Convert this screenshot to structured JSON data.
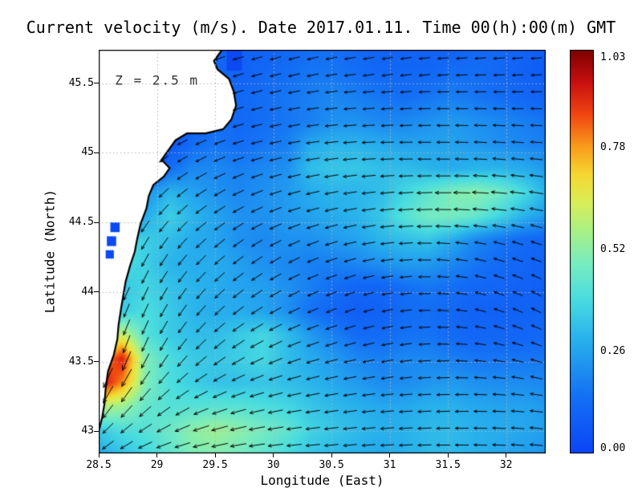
{
  "chart_data": {
    "type": "heatmap",
    "title": "Current velocity (m/s). Date 2017.01.11. Time 00(h):00(m) GMT",
    "xlabel": "Longitude (East)",
    "ylabel": "Latitude (North)",
    "xlim": [
      28.5,
      32.34
    ],
    "ylim": [
      42.84,
      45.74
    ],
    "x_ticks": [
      28.5,
      29,
      29.5,
      30,
      30.5,
      31,
      31.5,
      32
    ],
    "x_tick_labels": [
      "28.5",
      "29",
      "29.5",
      "30",
      "30.5",
      "31",
      "31.5",
      "32"
    ],
    "y_ticks": [
      43,
      43.5,
      44,
      44.5,
      45,
      45.5
    ],
    "y_tick_labels": [
      "43",
      "43.5",
      "44",
      "44.5",
      "45",
      "45.5"
    ],
    "grid": true,
    "grid_color": "#b4b4b4",
    "land_color": "#ffffff",
    "coast_color": "#000000",
    "arrow_color": "#000000",
    "lake_color": "#0c49f2",
    "annotation": {
      "text": "Z = 2.5 m",
      "lon": 28.64,
      "lat": 45.52
    },
    "colorbar": {
      "min": 0,
      "max": 1.03,
      "ticks": [
        1.03,
        0.78,
        0.52,
        0.26,
        0.0
      ],
      "tick_labels": [
        "1.03",
        "0.78",
        "0.52",
        "0.26",
        "0.00"
      ],
      "stops": [
        [
          0.0,
          "#0b45f5"
        ],
        [
          0.14,
          "#1470f5"
        ],
        [
          0.28,
          "#28b0ec"
        ],
        [
          0.38,
          "#48dce0"
        ],
        [
          0.47,
          "#78ecc0"
        ],
        [
          0.55,
          "#a8f088"
        ],
        [
          0.62,
          "#d8ee58"
        ],
        [
          0.69,
          "#f5d832"
        ],
        [
          0.76,
          "#f89c1c"
        ],
        [
          0.84,
          "#f04612"
        ],
        [
          0.92,
          "#c81010"
        ],
        [
          1.0,
          "#7e0000"
        ]
      ]
    },
    "velocity_field": {
      "lon0": 28.5,
      "dlon": 0.20211,
      "lat0": 45.74,
      "dlat": -0.17059,
      "ncols": 20,
      "nrows": 18,
      "values": [
        [
          0,
          0,
          0,
          0,
          0,
          0.1,
          0.1,
          0.1,
          0.12,
          0.14,
          0.14,
          0.12,
          0.1,
          0.1,
          0.1,
          0.1,
          0.12,
          0.12,
          0.1,
          0.08
        ],
        [
          0,
          0,
          0,
          0,
          0,
          0.12,
          0.1,
          0.12,
          0.14,
          0.16,
          0.16,
          0.14,
          0.12,
          0.12,
          0.12,
          0.14,
          0.14,
          0.12,
          0.1,
          0.08
        ],
        [
          0,
          0,
          0,
          0,
          0.06,
          0.12,
          0.12,
          0.14,
          0.16,
          0.18,
          0.2,
          0.18,
          0.16,
          0.14,
          0.16,
          0.18,
          0.16,
          0.14,
          0.12,
          0.1
        ],
        [
          0,
          0,
          0,
          0,
          0.1,
          0.14,
          0.12,
          0.14,
          0.16,
          0.18,
          0.22,
          0.22,
          0.2,
          0.2,
          0.22,
          0.24,
          0.22,
          0.2,
          0.18,
          0.16
        ],
        [
          0,
          0,
          0,
          0.06,
          0.14,
          0.16,
          0.14,
          0.16,
          0.18,
          0.28,
          0.3,
          0.3,
          0.28,
          0.26,
          0.26,
          0.26,
          0.24,
          0.22,
          0.2,
          0.18
        ],
        [
          0,
          0,
          0,
          0.14,
          0.2,
          0.2,
          0.18,
          0.2,
          0.22,
          0.32,
          0.34,
          0.34,
          0.32,
          0.32,
          0.3,
          0.28,
          0.3,
          0.3,
          0.28,
          0.24
        ],
        [
          0,
          0,
          0.22,
          0.3,
          0.26,
          0.22,
          0.2,
          0.22,
          0.24,
          0.28,
          0.3,
          0.3,
          0.32,
          0.38,
          0.44,
          0.5,
          0.52,
          0.48,
          0.4,
          0.3
        ],
        [
          0,
          0,
          0.28,
          0.36,
          0.3,
          0.26,
          0.22,
          0.22,
          0.24,
          0.26,
          0.28,
          0.3,
          0.34,
          0.42,
          0.48,
          0.48,
          0.45,
          0.38,
          0.3,
          0.24
        ],
        [
          0,
          0.42,
          0.36,
          0.32,
          0.28,
          0.26,
          0.22,
          0.2,
          0.22,
          0.22,
          0.24,
          0.26,
          0.3,
          0.32,
          0.34,
          0.28,
          0.2,
          0.16,
          0.13,
          0.11
        ],
        [
          0,
          0.4,
          0.36,
          0.3,
          0.28,
          0.28,
          0.25,
          0.22,
          0.2,
          0.18,
          0.18,
          0.2,
          0.22,
          0.25,
          0.24,
          0.2,
          0.16,
          0.13,
          0.11,
          0.1
        ],
        [
          0,
          0.34,
          0.38,
          0.33,
          0.3,
          0.28,
          0.26,
          0.25,
          0.22,
          0.18,
          0.14,
          0.11,
          0.11,
          0.14,
          0.16,
          0.14,
          0.12,
          0.11,
          0.1,
          0.09
        ],
        [
          0,
          0.36,
          0.4,
          0.35,
          0.3,
          0.28,
          0.28,
          0.26,
          0.22,
          0.15,
          0.11,
          0.09,
          0.1,
          0.13,
          0.14,
          0.12,
          0.1,
          0.1,
          0.1,
          0.1
        ],
        [
          0.45,
          0.62,
          0.42,
          0.35,
          0.32,
          0.32,
          0.35,
          0.38,
          0.32,
          0.24,
          0.18,
          0.13,
          0.13,
          0.15,
          0.15,
          0.13,
          0.11,
          0.11,
          0.11,
          0.12
        ],
        [
          0.75,
          0.92,
          0.5,
          0.4,
          0.35,
          0.34,
          0.36,
          0.38,
          0.32,
          0.28,
          0.24,
          0.2,
          0.18,
          0.2,
          0.2,
          0.18,
          0.16,
          0.16,
          0.16,
          0.16
        ],
        [
          0.98,
          0.8,
          0.5,
          0.4,
          0.36,
          0.33,
          0.33,
          0.34,
          0.32,
          0.3,
          0.27,
          0.24,
          0.21,
          0.21,
          0.23,
          0.24,
          0.22,
          0.21,
          0.21,
          0.2
        ],
        [
          0.6,
          0.55,
          0.45,
          0.42,
          0.42,
          0.43,
          0.42,
          0.4,
          0.38,
          0.34,
          0.31,
          0.29,
          0.27,
          0.27,
          0.29,
          0.29,
          0.27,
          0.26,
          0.26,
          0.24
        ],
        [
          0.35,
          0.4,
          0.42,
          0.46,
          0.52,
          0.55,
          0.52,
          0.48,
          0.44,
          0.37,
          0.34,
          0.31,
          0.29,
          0.29,
          0.31,
          0.31,
          0.29,
          0.28,
          0.27,
          0.25
        ],
        [
          0.28,
          0.33,
          0.38,
          0.44,
          0.5,
          0.5,
          0.48,
          0.44,
          0.39,
          0.34,
          0.31,
          0.29,
          0.27,
          0.29,
          0.31,
          0.31,
          0.29,
          0.27,
          0.25,
          0.23
        ]
      ]
    },
    "direction_field": {
      "lon0": 28.5,
      "dlon": 0.42667,
      "lat0": 45.74,
      "dlat": -0.3625,
      "ncols": 10,
      "nrows": 9,
      "values_deg": [
        [
          200,
          200,
          200,
          195,
          195,
          190,
          190,
          185,
          185,
          185
        ],
        [
          210,
          205,
          200,
          195,
          190,
          185,
          185,
          180,
          180,
          180
        ],
        [
          220,
          215,
          205,
          195,
          190,
          185,
          180,
          180,
          175,
          175
        ],
        [
          235,
          230,
          215,
          205,
          195,
          190,
          185,
          180,
          175,
          170
        ],
        [
          245,
          240,
          225,
          215,
          205,
          195,
          185,
          175,
          165,
          160
        ],
        [
          250,
          245,
          230,
          215,
          205,
          200,
          190,
          175,
          160,
          150
        ],
        [
          255,
          245,
          225,
          210,
          200,
          195,
          190,
          180,
          170,
          160
        ],
        [
          240,
          225,
          205,
          195,
          190,
          188,
          185,
          182,
          178,
          172
        ],
        [
          215,
          200,
          192,
          188,
          185,
          185,
          183,
          180,
          178,
          175
        ]
      ]
    },
    "coastline": [
      [
        29.56,
        45.74
      ],
      [
        29.49,
        45.66
      ],
      [
        29.52,
        45.6
      ],
      [
        29.62,
        45.53
      ],
      [
        29.66,
        45.44
      ],
      [
        29.68,
        45.34
      ],
      [
        29.64,
        45.24
      ],
      [
        29.57,
        45.17
      ],
      [
        29.42,
        45.14
      ],
      [
        29.26,
        45.14
      ],
      [
        29.16,
        45.09
      ],
      [
        29.1,
        45.02
      ],
      [
        29.04,
        44.95
      ],
      [
        29.11,
        44.89
      ],
      [
        29.06,
        44.83
      ],
      [
        28.97,
        44.77
      ],
      [
        28.93,
        44.69
      ],
      [
        28.91,
        44.6
      ],
      [
        28.86,
        44.49
      ],
      [
        28.83,
        44.38
      ],
      [
        28.81,
        44.29
      ],
      [
        28.77,
        44.19
      ],
      [
        28.73,
        44.07
      ],
      [
        28.71,
        43.97
      ],
      [
        28.69,
        43.87
      ],
      [
        28.67,
        43.76
      ],
      [
        28.66,
        43.66
      ],
      [
        28.63,
        43.55
      ],
      [
        28.58,
        43.43
      ],
      [
        28.56,
        43.31
      ],
      [
        28.55,
        43.2
      ],
      [
        28.53,
        43.1
      ],
      [
        28.5,
        43.0
      ]
    ],
    "lakes": [
      [
        29.6,
        45.74,
        0.13,
        0.15
      ],
      [
        28.6,
        44.5,
        0.08,
        0.07
      ],
      [
        28.57,
        44.4,
        0.08,
        0.07
      ],
      [
        28.56,
        44.3,
        0.07,
        0.06
      ]
    ],
    "arrows": {
      "nx": 24,
      "ny": 24
    }
  }
}
